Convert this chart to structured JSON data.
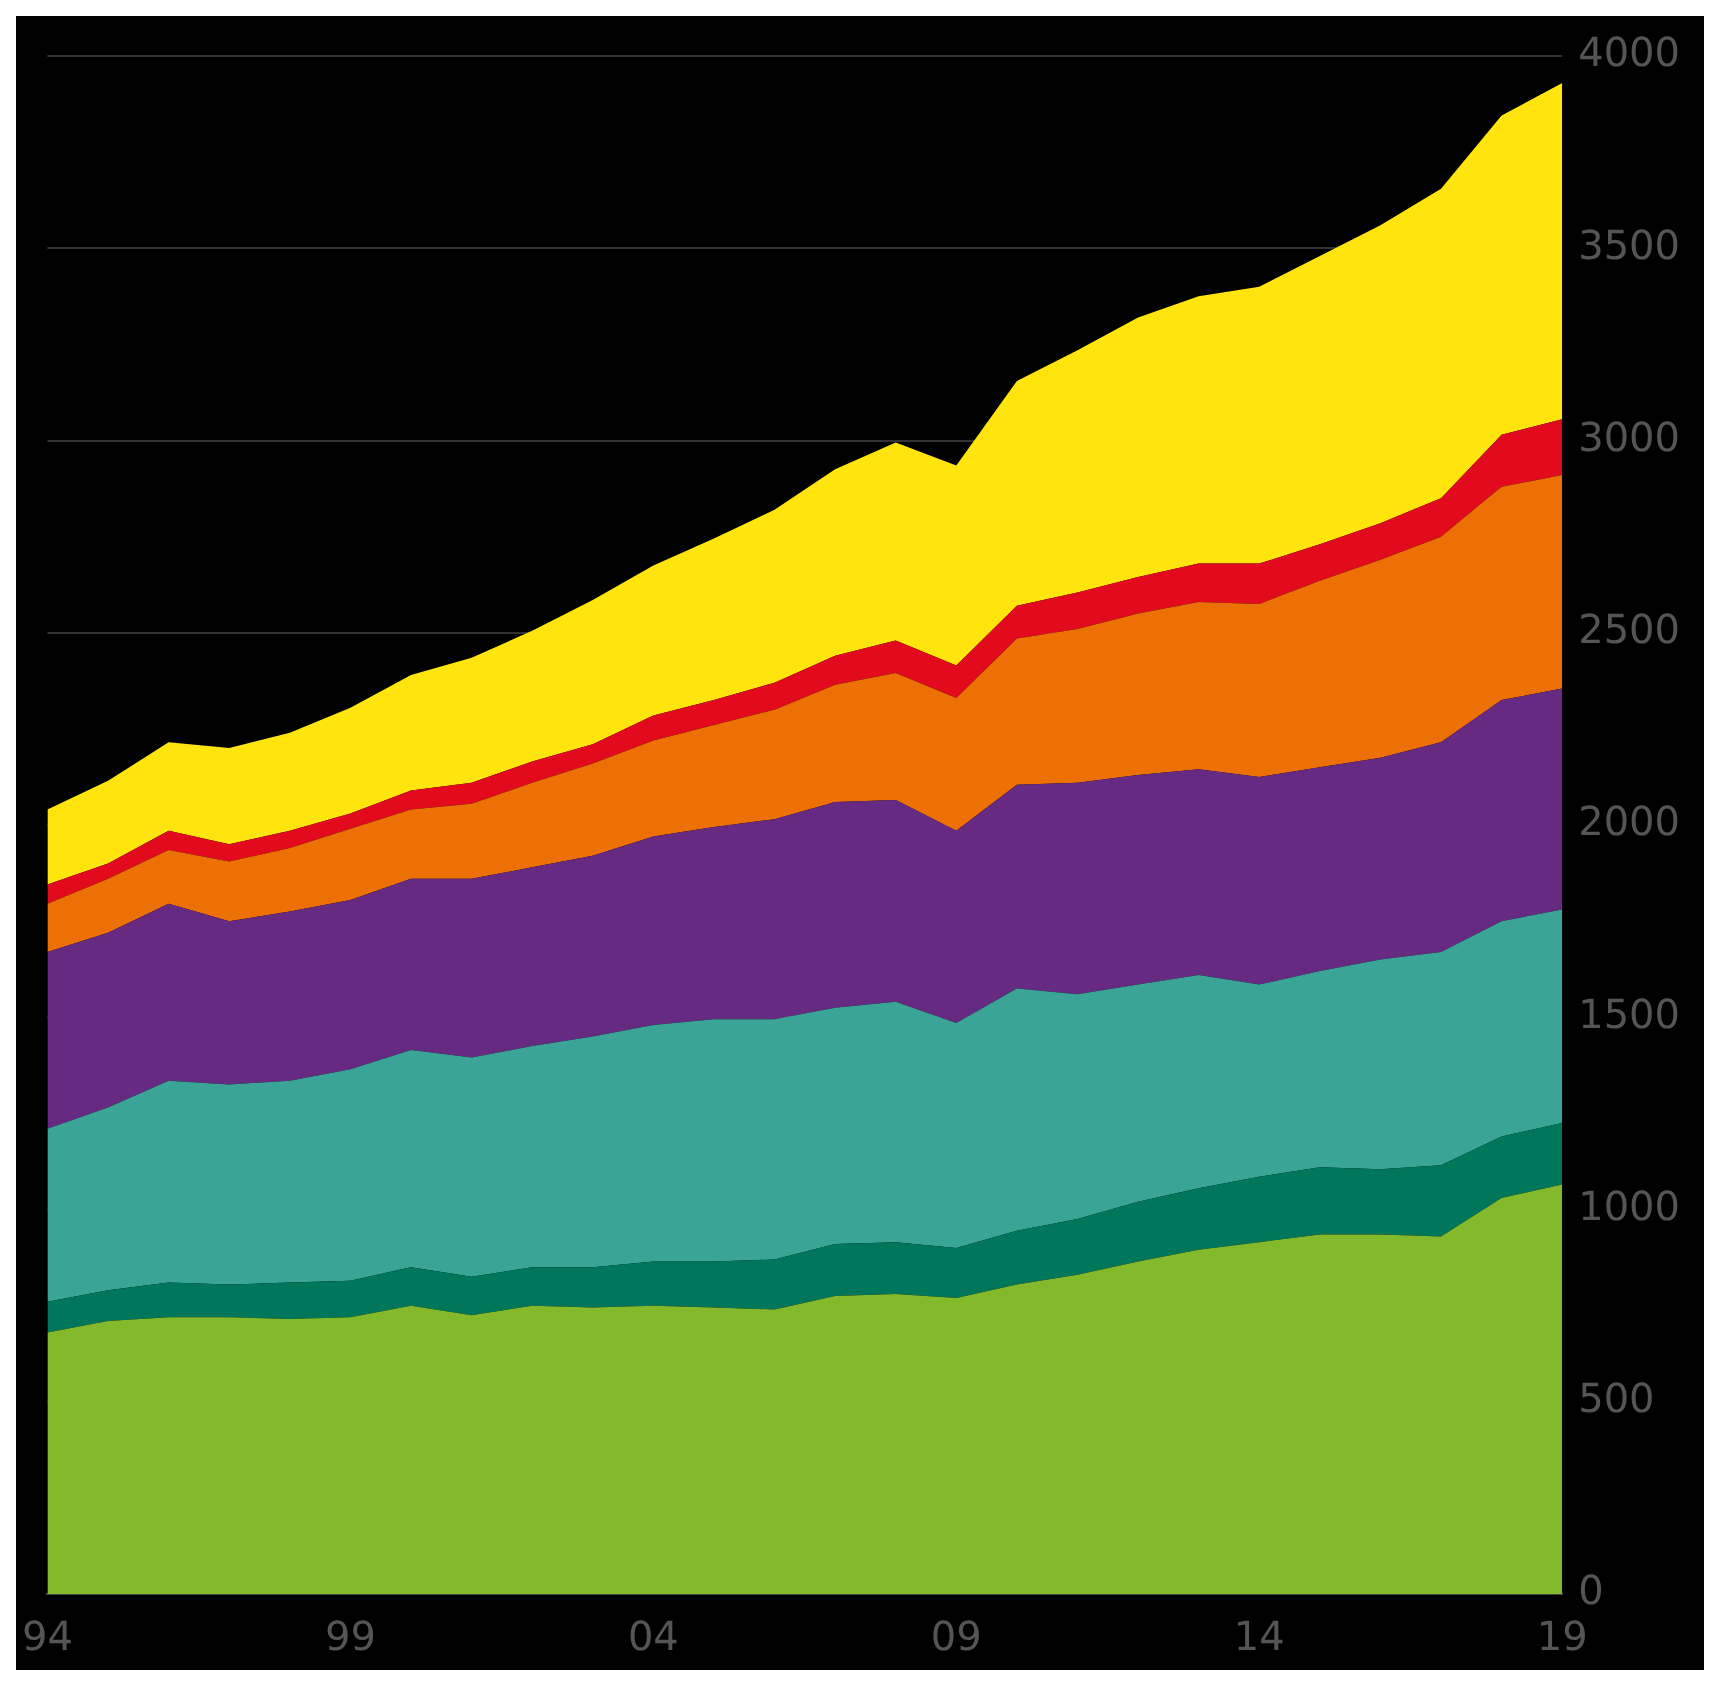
{
  "chart_data": {
    "type": "area",
    "stacked": true,
    "categories": [
      "94",
      null,
      null,
      null,
      null,
      "99",
      null,
      null,
      null,
      null,
      "04",
      null,
      null,
      null,
      null,
      "09",
      null,
      null,
      null,
      null,
      "14",
      null,
      null,
      null,
      null,
      "19"
    ],
    "series": [
      {
        "color": "#84b92b",
        "values": [
          680,
          710,
          720,
          720,
          715,
          720,
          750,
          725,
          750,
          745,
          750,
          745,
          740,
          775,
          780,
          770,
          805,
          830,
          865,
          895,
          915,
          935,
          935,
          930,
          1030,
          1065
        ]
      },
      {
        "color": "#00765a",
        "values": [
          80,
          80,
          90,
          85,
          95,
          95,
          100,
          100,
          100,
          105,
          115,
          120,
          130,
          135,
          135,
          130,
          140,
          145,
          155,
          160,
          170,
          175,
          170,
          185,
          160,
          160
        ]
      },
      {
        "color": "#3aa597",
        "values": [
          450,
          475,
          525,
          520,
          525,
          550,
          565,
          570,
          575,
          600,
          615,
          630,
          625,
          615,
          625,
          585,
          630,
          585,
          565,
          555,
          500,
          510,
          545,
          555,
          560,
          555
        ]
      },
      {
        "color": "#662a82",
        "values": [
          460,
          455,
          460,
          425,
          440,
          440,
          445,
          465,
          465,
          470,
          490,
          500,
          520,
          535,
          525,
          500,
          530,
          550,
          545,
          535,
          540,
          530,
          525,
          545,
          575,
          575
        ]
      },
      {
        "color": "#ec7004",
        "values": [
          125,
          140,
          140,
          155,
          165,
          185,
          180,
          195,
          220,
          240,
          250,
          265,
          285,
          305,
          330,
          345,
          380,
          400,
          420,
          435,
          450,
          485,
          515,
          535,
          555,
          555
        ]
      },
      {
        "color": "#e30a1d",
        "values": [
          50,
          40,
          50,
          45,
          45,
          40,
          50,
          55,
          55,
          50,
          65,
          65,
          70,
          75,
          85,
          85,
          85,
          95,
          95,
          100,
          105,
          95,
          95,
          100,
          135,
          145
        ]
      },
      {
        "color": "#ffe50d",
        "values": [
          195,
          215,
          230,
          250,
          255,
          275,
          300,
          325,
          340,
          375,
          390,
          420,
          450,
          485,
          515,
          520,
          585,
          630,
          675,
          695,
          720,
          750,
          775,
          805,
          830,
          875
        ]
      }
    ],
    "ylim": [
      0,
      4000
    ],
    "yticks": [
      0,
      500,
      1000,
      1500,
      2000,
      2500,
      3000,
      3500,
      4000
    ],
    "grid": "y",
    "legend": false,
    "marker": "none"
  }
}
